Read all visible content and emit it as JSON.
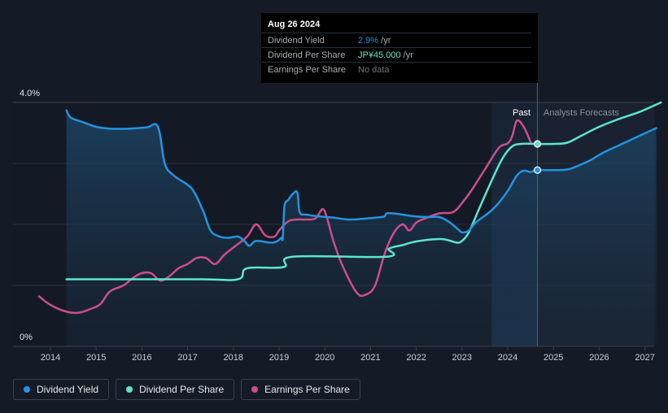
{
  "chart_data": {
    "type": "line",
    "ylim": [
      0,
      4.0
    ],
    "y_tick_labels": [
      "4.0%",
      "0%"
    ],
    "x_tick_labels": [
      "2014",
      "2015",
      "2016",
      "2017",
      "2018",
      "2019",
      "2020",
      "2021",
      "2022",
      "2023",
      "2024",
      "2025",
      "2026",
      "2027"
    ],
    "region_labels": {
      "past": "Past",
      "forecast": "Analysts Forecasts"
    },
    "grid": true,
    "legend_placement": "bottom-left",
    "series": [
      {
        "name": "Dividend Yield",
        "color": "#2394df",
        "x": [
          2014.35,
          2014.45,
          2014.7,
          2015.0,
          2015.3,
          2015.7,
          2016.1,
          2016.35,
          2016.5,
          2016.7,
          2017.0,
          2017.15,
          2017.35,
          2017.5,
          2017.7,
          2017.9,
          2018.1,
          2018.25,
          2018.35,
          2018.5,
          2018.8,
          2018.95,
          2019.05,
          2019.08,
          2019.12,
          2019.2,
          2019.3,
          2019.4,
          2019.45,
          2019.6,
          2019.9,
          2020.2,
          2020.5,
          2020.8,
          2021.1,
          2021.3,
          2021.35,
          2021.5,
          2021.7,
          2022.0,
          2022.3,
          2022.5,
          2022.7,
          2022.9,
          2023.0,
          2023.15,
          2023.3,
          2023.6,
          2023.8,
          2024.0,
          2024.2,
          2024.35,
          2024.5,
          2024.65,
          2025.0,
          2025.3,
          2025.5,
          2025.8,
          2026.1,
          2026.5,
          2026.9,
          2027.25
        ],
        "y": [
          3.87,
          3.75,
          3.68,
          3.6,
          3.57,
          3.57,
          3.59,
          3.6,
          3.0,
          2.8,
          2.65,
          2.52,
          2.2,
          1.9,
          1.8,
          1.78,
          1.8,
          1.72,
          1.65,
          1.73,
          1.7,
          1.72,
          1.78,
          1.78,
          2.3,
          2.4,
          2.5,
          2.52,
          2.2,
          2.16,
          2.13,
          2.11,
          2.08,
          2.09,
          2.11,
          2.13,
          2.18,
          2.18,
          2.16,
          2.13,
          2.12,
          2.12,
          2.05,
          1.93,
          1.87,
          1.9,
          2.03,
          2.2,
          2.35,
          2.55,
          2.8,
          2.88,
          2.86,
          2.89,
          2.89,
          2.9,
          2.95,
          3.05,
          3.18,
          3.32,
          3.46,
          3.58
        ]
      },
      {
        "name": "Dividend Per Share",
        "color": "#5ce6cf",
        "x": [
          2014.35,
          2017.2,
          2018.1,
          2018.3,
          2019.1,
          2019.3,
          2021.35,
          2021.4,
          2021.7,
          2022.0,
          2022.5,
          2022.7,
          2022.9,
          2023.0,
          2023.15,
          2023.4,
          2023.7,
          2023.9,
          2024.1,
          2024.3,
          2024.65,
          2025.0,
          2025.3,
          2025.6,
          2026.0,
          2026.4,
          2026.9,
          2027.35
        ],
        "y": [
          1.1,
          1.1,
          1.1,
          1.28,
          1.3,
          1.47,
          1.47,
          1.6,
          1.66,
          1.72,
          1.76,
          1.74,
          1.7,
          1.73,
          1.87,
          2.3,
          2.8,
          3.1,
          3.28,
          3.32,
          3.32,
          3.32,
          3.34,
          3.45,
          3.6,
          3.72,
          3.85,
          4.0
        ]
      },
      {
        "name": "Earnings Per Share",
        "color": "#cc4d8e",
        "x": [
          2013.75,
          2014.0,
          2014.3,
          2014.6,
          2014.9,
          2015.1,
          2015.3,
          2015.6,
          2015.8,
          2016.0,
          2016.2,
          2016.4,
          2016.6,
          2016.8,
          2017.0,
          2017.2,
          2017.4,
          2017.6,
          2017.8,
          2018.0,
          2018.3,
          2018.5,
          2018.7,
          2018.9,
          2019.0,
          2019.2,
          2019.4,
          2019.6,
          2019.8,
          2019.95,
          2020.05,
          2020.2,
          2020.4,
          2020.7,
          2020.9,
          2021.1,
          2021.3,
          2021.5,
          2021.7,
          2021.85,
          2022.0,
          2022.2,
          2022.5,
          2022.8,
          2023.0,
          2023.2,
          2023.5,
          2023.8,
          2024.0,
          2024.1,
          2024.2,
          2024.35,
          2024.5
        ],
        "y": [
          0.82,
          0.68,
          0.58,
          0.55,
          0.62,
          0.7,
          0.9,
          1.0,
          1.12,
          1.2,
          1.2,
          1.08,
          1.15,
          1.28,
          1.35,
          1.45,
          1.45,
          1.35,
          1.5,
          1.62,
          1.8,
          2.0,
          1.82,
          1.8,
          1.9,
          2.05,
          2.08,
          2.08,
          2.1,
          2.25,
          2.1,
          1.7,
          1.3,
          0.88,
          0.85,
          1.0,
          1.5,
          1.85,
          2.0,
          1.9,
          2.03,
          2.1,
          2.18,
          2.2,
          2.35,
          2.55,
          2.9,
          3.25,
          3.33,
          3.45,
          3.7,
          3.6,
          3.35
        ]
      }
    ],
    "markers": [
      {
        "series": "Dividend Yield",
        "x": 2024.65,
        "y": 2.89
      },
      {
        "series": "Dividend Per Share",
        "x": 2024.65,
        "y": 3.32
      }
    ]
  },
  "tooltip": {
    "date": "Aug 26 2024",
    "rows": [
      {
        "name": "Dividend Yield",
        "value": "2.9%",
        "unit": " /yr",
        "color": "#2394df"
      },
      {
        "name": "Dividend Per Share",
        "value": "JP¥45.000",
        "unit": " /yr",
        "color": "#5ce6cf"
      },
      {
        "name": "Earnings Per Share",
        "value": "No data",
        "unit": "",
        "color": "#6f747c"
      }
    ]
  },
  "legend": [
    {
      "label": "Dividend Yield",
      "color": "#2394df"
    },
    {
      "label": "Dividend Per Share",
      "color": "#5ce6cf"
    },
    {
      "label": "Earnings Per Share",
      "color": "#cc4d8e"
    }
  ]
}
